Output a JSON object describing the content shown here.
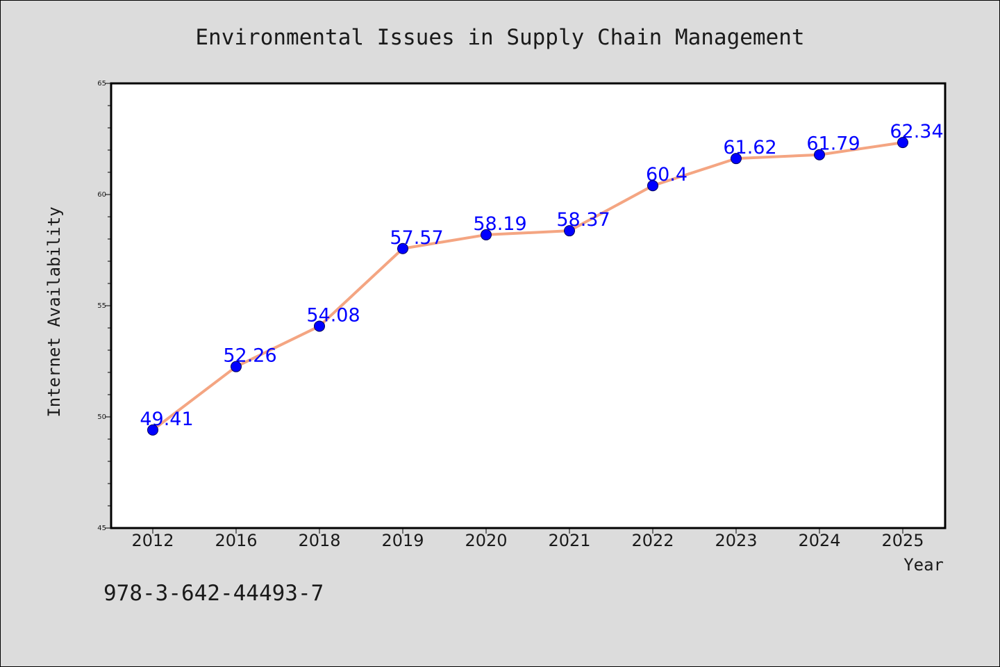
{
  "chart_data": {
    "type": "line",
    "title": "Environmental Issues in Supply Chain Management",
    "xlabel": "Year",
    "ylabel": "Internet Availability",
    "categories": [
      "2012",
      "2016",
      "2018",
      "2019",
      "2020",
      "2021",
      "2022",
      "2023",
      "2024",
      "2025"
    ],
    "series": [
      {
        "values": [
          49.41,
          52.26,
          54.08,
          57.57,
          58.19,
          58.37,
          60.4,
          61.62,
          61.79,
          62.34
        ],
        "labels": [
          "49.41",
          "52.26",
          "54.08",
          "57.57",
          "58.19",
          "58.37",
          "60.4",
          "61.62",
          "61.79",
          "62.34"
        ]
      }
    ],
    "ylim": [
      45,
      65
    ],
    "yticks": [
      "45",
      "50",
      "55",
      "60",
      "65"
    ],
    "grid": false,
    "legend": "none",
    "colors": {
      "line": "#f4a582",
      "marker": "#0000ff",
      "label": "#0000ff",
      "background": "#dcdcdc",
      "plot_background": "#ffffff"
    }
  },
  "footer": {
    "text": "978-3-642-44493-7"
  }
}
